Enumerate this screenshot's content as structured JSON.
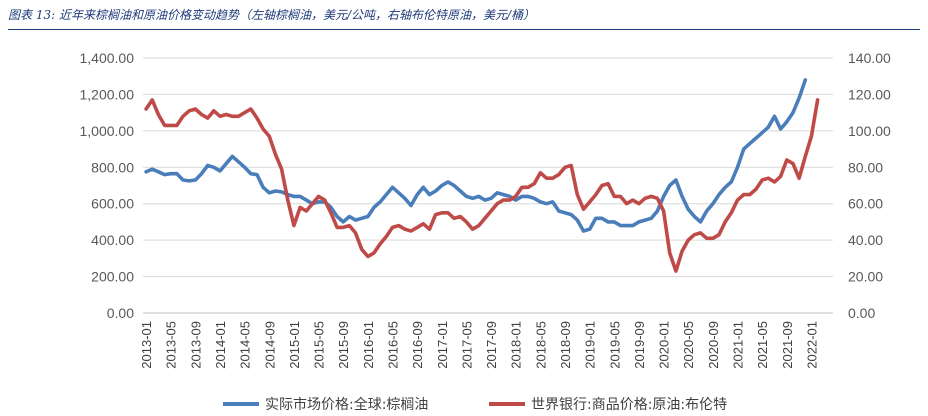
{
  "caption": "图表 13: 近年来棕榈油和原油价格变动趋势（左轴棕榈油，美元/公吨，右轴布伦特原油，美元/桶）",
  "chart_data": {
    "type": "line",
    "title": "",
    "y_left": {
      "ticks": [
        "1,400.00",
        "1,200.00",
        "1,000.00",
        "800.00",
        "600.00",
        "400.00",
        "200.00",
        "0.00"
      ],
      "range": [
        0,
        1400
      ]
    },
    "y_right": {
      "ticks": [
        "140.00",
        "120.00",
        "100.00",
        "80.00",
        "60.00",
        "40.00",
        "20.00",
        "0.00"
      ],
      "range": [
        0,
        140
      ]
    },
    "x_ticks": [
      "2013-01",
      "2013-05",
      "2013-09",
      "2014-01",
      "2014-05",
      "2014-09",
      "2015-01",
      "2015-05",
      "2015-09",
      "2016-01",
      "2016-05",
      "2016-09",
      "2017-01",
      "2017-05",
      "2017-09",
      "2018-01",
      "2018-05",
      "2018-09",
      "2019-01",
      "2019-05",
      "2019-09",
      "2020-01",
      "2020-05",
      "2020-09",
      "2021-01",
      "2021-05",
      "2021-09",
      "2022-01"
    ],
    "grid": true,
    "legend_position": "bottom",
    "series": [
      {
        "name": "实际市场价格:全球:棕榈油",
        "axis": "left",
        "color": "#4a7ebb",
        "start": "2013-01",
        "values": [
          775,
          790,
          775,
          760,
          765,
          765,
          730,
          725,
          730,
          765,
          810,
          800,
          780,
          820,
          860,
          830,
          800,
          765,
          760,
          690,
          660,
          670,
          665,
          650,
          640,
          640,
          620,
          600,
          610,
          610,
          580,
          530,
          500,
          530,
          510,
          520,
          530,
          580,
          610,
          650,
          690,
          660,
          630,
          590,
          650,
          690,
          650,
          670,
          700,
          720,
          700,
          670,
          640,
          630,
          640,
          620,
          630,
          660,
          650,
          640,
          620,
          640,
          640,
          630,
          610,
          600,
          610,
          560,
          550,
          540,
          510,
          450,
          460,
          520,
          520,
          500,
          500,
          480,
          480,
          480,
          500,
          510,
          520,
          560,
          640,
          700,
          730,
          640,
          570,
          530,
          500,
          560,
          600,
          650,
          690,
          720,
          800,
          900,
          930,
          960,
          990,
          1020,
          1080,
          1010,
          1050,
          1100,
          1180,
          1280
        ]
      },
      {
        "name": "世界银行:商品价格:原油:布伦特",
        "axis": "right",
        "color": "#be4b48",
        "start": "2013-01",
        "values": [
          112,
          117,
          109,
          103,
          103,
          103,
          108,
          111,
          112,
          109,
          107,
          111,
          108,
          109,
          108,
          108,
          110,
          112,
          107,
          101,
          97,
          87,
          79,
          62,
          48,
          58,
          56,
          60,
          64,
          62,
          55,
          47,
          47,
          48,
          44,
          35,
          31,
          33,
          38,
          42,
          47,
          48,
          46,
          45,
          47,
          49,
          46,
          54,
          55,
          55,
          52,
          53,
          50,
          46,
          48,
          52,
          56,
          60,
          62,
          62,
          64,
          69,
          69,
          71,
          77,
          74,
          74,
          76,
          80,
          81,
          65,
          57,
          61,
          65,
          70,
          71,
          64,
          64,
          60,
          62,
          60,
          63,
          64,
          63,
          56,
          33,
          23,
          34,
          40,
          43,
          44,
          41,
          41,
          43,
          50,
          55,
          62,
          65,
          65,
          68,
          73,
          74,
          72,
          75,
          84,
          82,
          74,
          86,
          97,
          117
        ]
      }
    ]
  }
}
